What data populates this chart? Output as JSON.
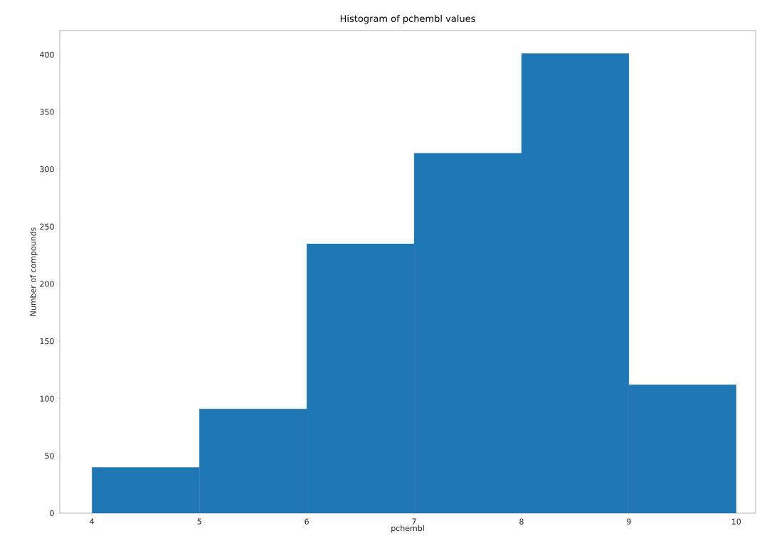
{
  "chart_data": {
    "type": "histogram",
    "title": "Histogram of pchembl values",
    "xlabel": "pchembl",
    "ylabel": "Number of compounds",
    "bins": [
      4,
      5,
      6,
      7,
      8,
      9,
      10
    ],
    "values": [
      40,
      91,
      235,
      314,
      401,
      112
    ],
    "color": "#1f77b4",
    "xlim": [
      3.7,
      10.18
    ],
    "ylim": [
      0,
      421
    ],
    "xticks": [
      4,
      5,
      6,
      7,
      8,
      9,
      10
    ],
    "yticks": [
      0,
      50,
      100,
      150,
      200,
      250,
      300,
      350,
      400
    ]
  }
}
